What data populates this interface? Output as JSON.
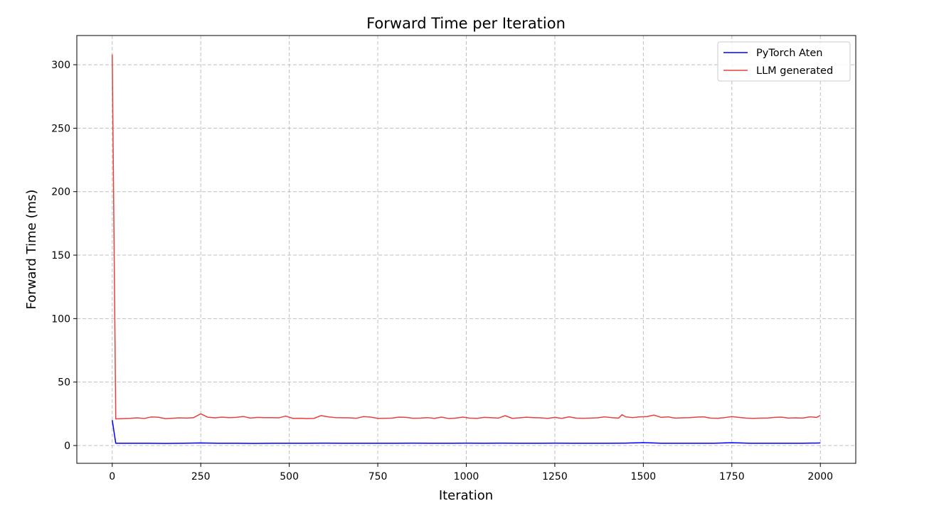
{
  "chart_data": {
    "type": "line",
    "title": "Forward Time per Iteration",
    "xlabel": "Iteration",
    "ylabel": "Forward Time (ms)",
    "xlim": [
      -100,
      2100
    ],
    "ylim": [
      -14,
      323
    ],
    "xticks": [
      0,
      250,
      500,
      750,
      1000,
      1250,
      1500,
      1750,
      2000
    ],
    "yticks": [
      0,
      50,
      100,
      150,
      200,
      250,
      300
    ],
    "xtick_labels": [
      "0",
      "250",
      "500",
      "750",
      "1000",
      "1250",
      "1500",
      "1750",
      "2000"
    ],
    "ytick_labels": [
      "0",
      "50",
      "100",
      "150",
      "200",
      "250",
      "300"
    ],
    "grid": true,
    "legend_position": "top-right",
    "series": [
      {
        "name": "PyTorch Aten",
        "color": "#0000ff",
        "x": [
          0,
          10,
          50,
          100,
          150,
          200,
          250,
          300,
          350,
          400,
          450,
          500,
          550,
          600,
          650,
          700,
          750,
          800,
          850,
          900,
          950,
          1000,
          1050,
          1100,
          1150,
          1200,
          1250,
          1300,
          1350,
          1400,
          1450,
          1500,
          1550,
          1600,
          1650,
          1700,
          1750,
          1800,
          1850,
          1900,
          1950,
          2000
        ],
        "y": [
          20,
          1.8,
          1.8,
          1.8,
          1.7,
          1.8,
          2.0,
          1.8,
          1.8,
          1.7,
          1.8,
          1.8,
          1.8,
          1.9,
          1.8,
          1.8,
          1.8,
          1.8,
          1.9,
          1.8,
          1.8,
          1.9,
          1.8,
          1.9,
          1.8,
          1.8,
          1.9,
          1.8,
          1.8,
          1.8,
          1.9,
          2.3,
          1.8,
          1.8,
          1.8,
          1.8,
          2.2,
          1.8,
          1.8,
          1.8,
          1.8,
          2.0
        ]
      },
      {
        "name": "LLM generated",
        "color": "#e8413a",
        "x": [
          0,
          10,
          30,
          50,
          70,
          90,
          110,
          130,
          150,
          170,
          190,
          210,
          230,
          250,
          270,
          290,
          310,
          330,
          350,
          370,
          390,
          410,
          430,
          450,
          470,
          490,
          510,
          530,
          550,
          570,
          590,
          610,
          630,
          650,
          670,
          690,
          710,
          730,
          750,
          770,
          790,
          810,
          830,
          850,
          870,
          890,
          910,
          930,
          950,
          970,
          990,
          1010,
          1030,
          1050,
          1070,
          1090,
          1110,
          1130,
          1150,
          1170,
          1190,
          1210,
          1230,
          1250,
          1270,
          1290,
          1310,
          1330,
          1350,
          1370,
          1390,
          1410,
          1430,
          1440,
          1450,
          1470,
          1490,
          1510,
          1530,
          1550,
          1570,
          1590,
          1610,
          1630,
          1650,
          1670,
          1690,
          1710,
          1730,
          1750,
          1770,
          1790,
          1810,
          1830,
          1850,
          1870,
          1890,
          1910,
          1930,
          1950,
          1970,
          1990,
          2000
        ],
        "y": [
          308,
          21,
          21.2,
          21.4,
          21.8,
          21.3,
          22.5,
          22.3,
          21.2,
          21.5,
          21.8,
          21.6,
          22.0,
          25.0,
          22.3,
          21.8,
          22.4,
          22.0,
          22.2,
          22.9,
          21.6,
          22.2,
          22.0,
          22.0,
          21.8,
          23.2,
          21.4,
          21.5,
          21.3,
          21.4,
          23.6,
          22.6,
          22.0,
          21.9,
          21.8,
          21.5,
          22.8,
          22.4,
          21.4,
          21.5,
          21.6,
          22.4,
          22.2,
          21.5,
          21.6,
          22.0,
          21.4,
          22.4,
          21.3,
          21.6,
          22.4,
          21.6,
          21.4,
          22.2,
          22.0,
          21.6,
          23.5,
          21.4,
          21.8,
          22.3,
          22.0,
          21.8,
          21.4,
          22.2,
          21.4,
          22.6,
          21.6,
          21.5,
          21.6,
          21.8,
          22.6,
          22.0,
          21.6,
          24.3,
          22.6,
          22.0,
          22.6,
          22.8,
          24.0,
          22.2,
          22.6,
          21.6,
          21.8,
          22.0,
          22.4,
          22.6,
          21.6,
          21.5,
          22.0,
          22.8,
          22.2,
          21.6,
          21.4,
          21.6,
          21.6,
          22.2,
          22.4,
          21.6,
          21.8,
          21.6,
          22.6,
          22.2,
          23.8
        ]
      }
    ]
  }
}
